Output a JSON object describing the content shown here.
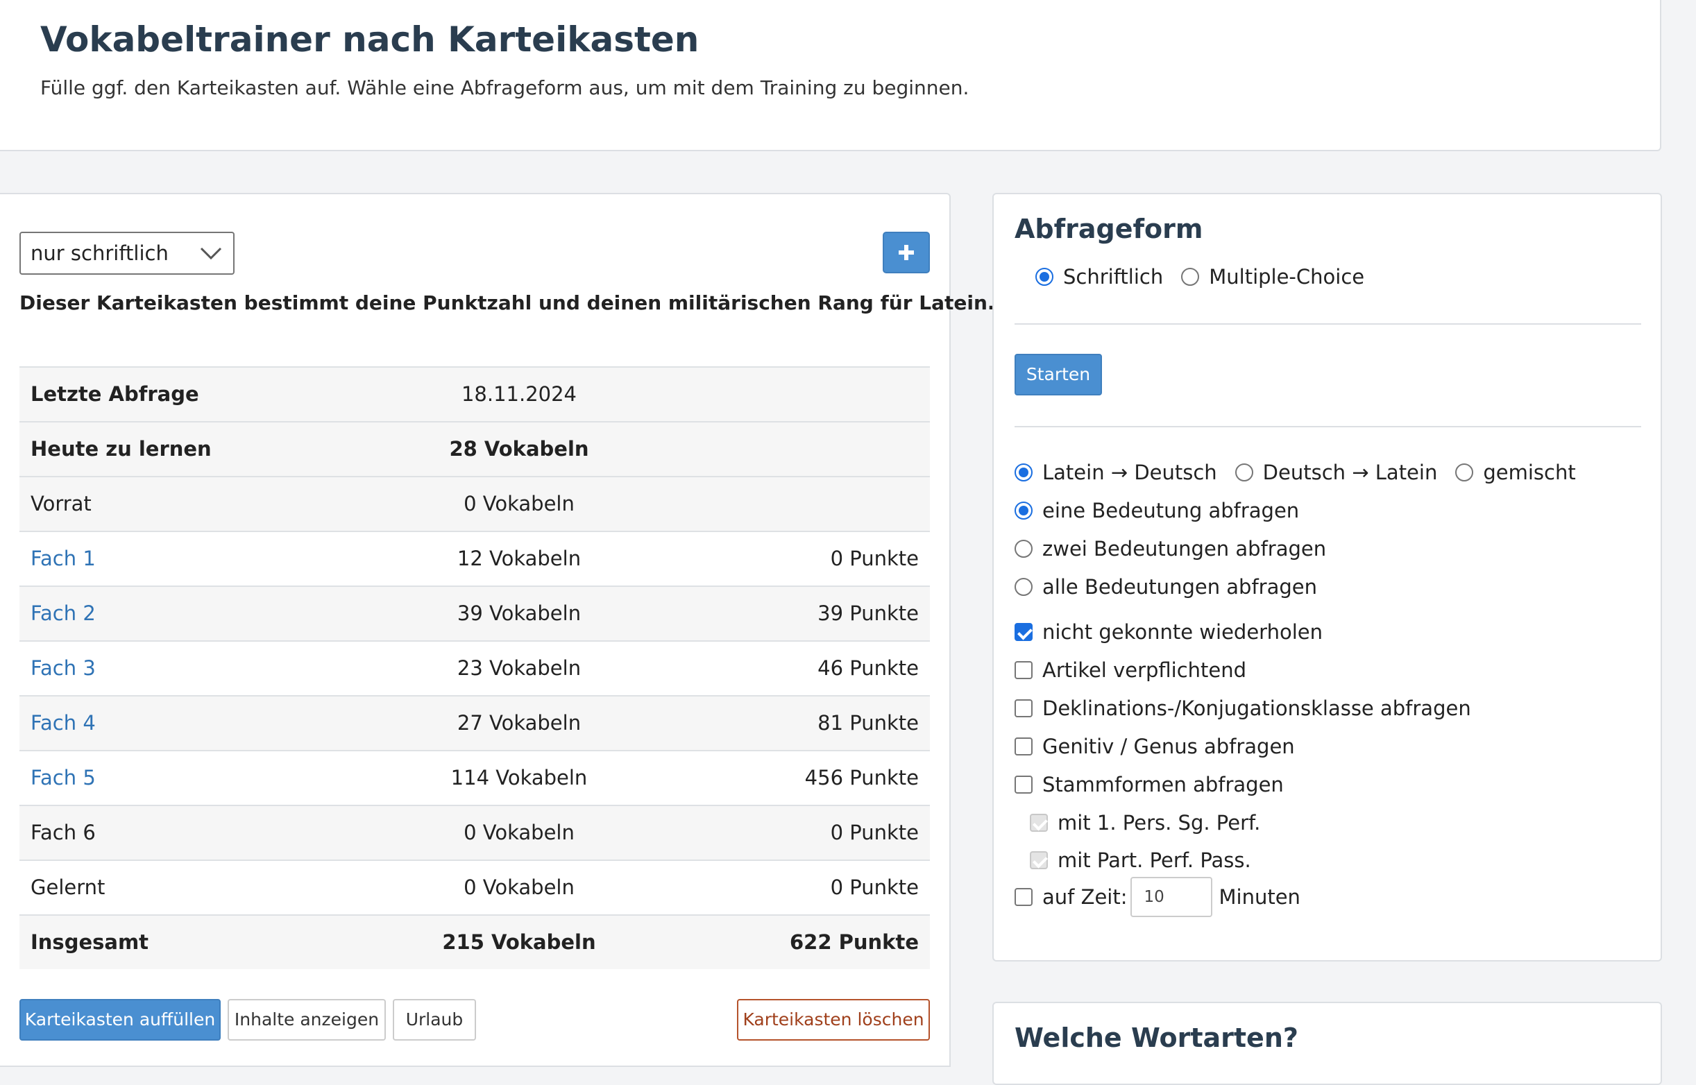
{
  "header": {
    "title": "Vokabeltrainer nach Karteikasten",
    "subtitle": "Fülle ggf. den Karteikasten auf. Wähle eine Abfrageform aus, um mit dem Training zu beginnen."
  },
  "left": {
    "select_value": "nur schriftlich",
    "info": "Dieser Karteikasten bestimmt deine Punktzahl und deinen militärischen Rang für Latein.",
    "rows": [
      {
        "label": "Letzte Abfrage",
        "value": "18.11.2024",
        "points": ""
      },
      {
        "label": "Heute zu lernen",
        "value": "28 Vokabeln",
        "points": ""
      },
      {
        "label": "Vorrat",
        "value": "0 Vokabeln",
        "points": ""
      },
      {
        "label": "Fach 1",
        "value": "12 Vokabeln",
        "points": "0 Punkte"
      },
      {
        "label": "Fach 2",
        "value": "39 Vokabeln",
        "points": "39 Punkte"
      },
      {
        "label": "Fach 3",
        "value": "23 Vokabeln",
        "points": "46 Punkte"
      },
      {
        "label": "Fach 4",
        "value": "27 Vokabeln",
        "points": "81 Punkte"
      },
      {
        "label": "Fach 5",
        "value": "114 Vokabeln",
        "points": "456 Punkte"
      },
      {
        "label": "Fach 6",
        "value": "0 Vokabeln",
        "points": "0 Punkte"
      },
      {
        "label": "Gelernt",
        "value": "0 Vokabeln",
        "points": "0 Punkte"
      },
      {
        "label": "Insgesamt",
        "value": "215 Vokabeln",
        "points": "622 Punkte"
      }
    ],
    "buttons": {
      "fill": "Karteikasten auffüllen",
      "show": "Inhalte anzeigen",
      "vacation": "Urlaub",
      "delete": "Karteikasten löschen"
    }
  },
  "right": {
    "title": "Abfrageform",
    "form_written": "Schriftlich",
    "form_mc": "Multiple-Choice",
    "start": "Starten",
    "dir_lat_de": "Latein → Deutsch",
    "dir_de_lat": "Deutsch → Latein",
    "dir_mixed": "gemischt",
    "one_meaning": "eine Bedeutung abfragen",
    "two_meanings": "zwei Bedeutungen abfragen",
    "all_meanings": "alle Bedeutungen abfragen",
    "repeat_failed": "nicht gekonnte wiederholen",
    "article_required": "Artikel verpflichtend",
    "declension": "Deklinations-/Konjugationsklasse abfragen",
    "genitive": "Genitiv / Genus abfragen",
    "stem_forms": "Stammformen abfragen",
    "perf_1sg": "mit 1. Pers. Sg. Perf.",
    "part_perf": "mit Part. Perf. Pass.",
    "timed_label": "auf Zeit:",
    "timed_value": "10",
    "timed_unit": "Minuten"
  },
  "bottom": {
    "title": "Welche Wortarten?"
  },
  "colors": {
    "accent": "#4a8fd1",
    "link": "#2f73b5",
    "heading": "#2a3d4f",
    "danger": "#a0401c"
  }
}
